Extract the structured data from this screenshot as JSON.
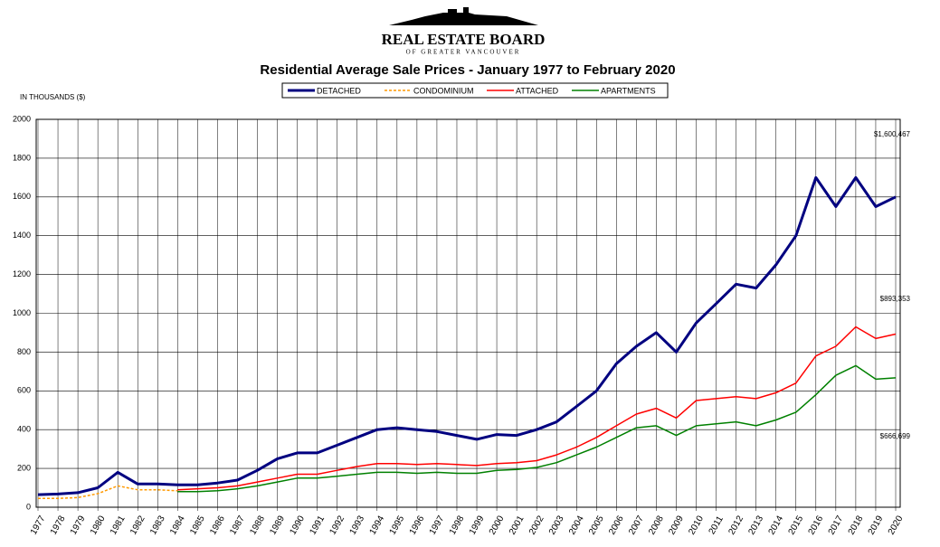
{
  "logo": {
    "name": "REAL ESTATE BOARD",
    "sub": "OF GREATER VANCOUVER"
  },
  "chart_data": {
    "type": "line",
    "title": "Residential Average Sale Prices  -  January 1977 to February 2020",
    "y_label": "IN THOUSANDS ($)",
    "x": [
      1977,
      1978,
      1979,
      1980,
      1981,
      1982,
      1983,
      1984,
      1985,
      1986,
      1987,
      1988,
      1989,
      1990,
      1991,
      1992,
      1993,
      1994,
      1995,
      1996,
      1997,
      1998,
      1999,
      2000,
      2001,
      2002,
      2003,
      2004,
      2005,
      2006,
      2007,
      2008,
      2009,
      2010,
      2011,
      2012,
      2013,
      2014,
      2015,
      2016,
      2017,
      2018,
      2019,
      2020
    ],
    "series": [
      {
        "name": "DETACHED",
        "color": "#000080",
        "values": [
          65,
          68,
          75,
          100,
          180,
          120,
          120,
          115,
          115,
          125,
          140,
          190,
          250,
          280,
          280,
          320,
          360,
          400,
          410,
          400,
          390,
          370,
          350,
          375,
          370,
          400,
          440,
          520,
          600,
          740,
          830,
          900,
          800,
          950,
          1050,
          1150,
          1130,
          1250,
          1400,
          1700,
          1550,
          1700,
          1550,
          1600
        ]
      },
      {
        "name": "CONDOMINIUM",
        "color": "#ff9900",
        "values": [
          45,
          45,
          50,
          70,
          110,
          90,
          90,
          85,
          null,
          null,
          null,
          null,
          null,
          null,
          null,
          null,
          null,
          null,
          null,
          null,
          null,
          null,
          null,
          null,
          null,
          null,
          null,
          null,
          null,
          null,
          null,
          null,
          null,
          null,
          null,
          null,
          null,
          null,
          null,
          null,
          null,
          null,
          null,
          null
        ]
      },
      {
        "name": "ATTACHED",
        "color": "#ff0000",
        "values": [
          null,
          null,
          null,
          null,
          null,
          null,
          null,
          90,
          95,
          100,
          110,
          130,
          150,
          170,
          170,
          190,
          210,
          225,
          225,
          220,
          225,
          220,
          215,
          225,
          230,
          240,
          270,
          310,
          360,
          420,
          480,
          510,
          460,
          550,
          560,
          570,
          560,
          590,
          640,
          780,
          830,
          930,
          870,
          893
        ]
      },
      {
        "name": "APARTMENTS",
        "color": "#008000",
        "values": [
          null,
          null,
          null,
          null,
          null,
          null,
          null,
          80,
          80,
          85,
          95,
          110,
          130,
          150,
          150,
          160,
          170,
          180,
          180,
          175,
          180,
          175,
          175,
          190,
          195,
          205,
          230,
          270,
          310,
          360,
          410,
          420,
          370,
          420,
          430,
          440,
          420,
          450,
          490,
          580,
          680,
          730,
          660,
          667
        ]
      }
    ],
    "annotations": [
      "$1,600,467",
      "$893,353",
      "$666,699"
    ],
    "xlim": [
      1977,
      2020
    ],
    "xticks": [
      1977,
      1978,
      1979,
      1980,
      1981,
      1982,
      1983,
      1984,
      1985,
      1986,
      1987,
      1988,
      1989,
      1990,
      1991,
      1992,
      1993,
      1994,
      1995,
      1996,
      1997,
      1998,
      1999,
      2000,
      2001,
      2002,
      2003,
      2004,
      2005,
      2006,
      2007,
      2008,
      2009,
      2010,
      2011,
      2012,
      2013,
      2014,
      2015,
      2016,
      2017,
      2018,
      2019,
      2020
    ],
    "ylim": [
      0,
      2000
    ],
    "yticks": [
      0,
      200,
      400,
      600,
      800,
      1000,
      1200,
      1400,
      1600,
      1800,
      2000
    ],
    "grid": true
  }
}
